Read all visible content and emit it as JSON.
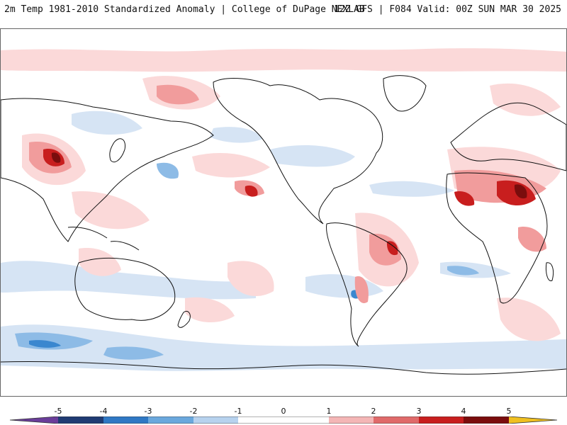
{
  "header": {
    "left_title": "2m Temp 1981-2010 Standardized Anomaly | College of DuPage NEXLAB",
    "right_title": "12Z GFS | F084 Valid: 00Z SUN MAR 30 2025"
  },
  "colorbar": {
    "ticks": [
      "-5",
      "-4",
      "-3",
      "-2",
      "-1",
      "0",
      "1",
      "2",
      "3",
      "4",
      "5"
    ],
    "colors": [
      "#6a3d9a",
      "#1f3b73",
      "#2f78c4",
      "#6aa8dd",
      "#b7d2ee",
      "#ffffff",
      "#ffffff",
      "#f4b6b6",
      "#e06a6a",
      "#c81e1e",
      "#7a0d0d",
      "#f0c020"
    ]
  },
  "map": {
    "colors": {
      "ocean": "#ffffff",
      "coast": "#111111",
      "light_warm": "#fbd9d9",
      "warm": "#f19c9c",
      "hot": "#c81e1e",
      "very_hot": "#7a0d0d",
      "light_cool": "#d6e4f4",
      "cool": "#8dbbe6",
      "cold": "#3a87cf"
    }
  }
}
